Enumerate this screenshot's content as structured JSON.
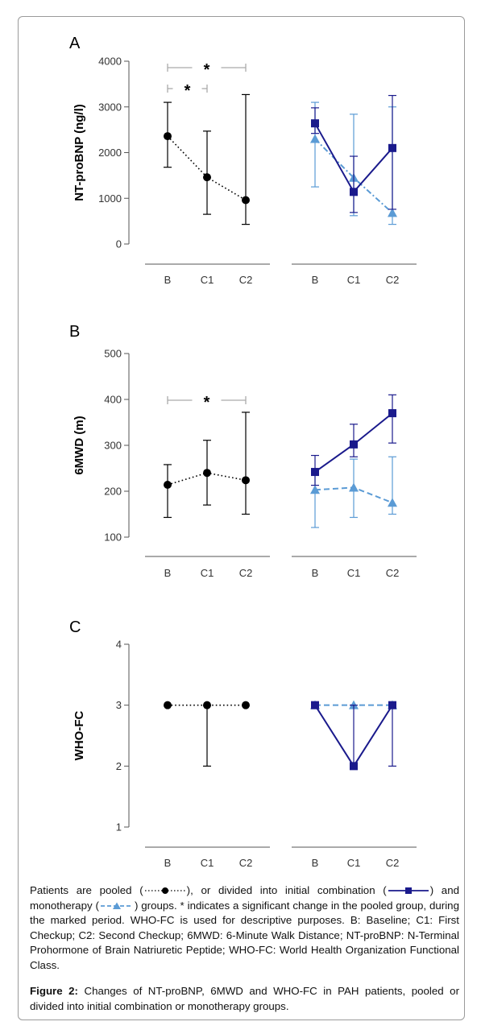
{
  "chart_data": [
    {
      "panel": "A",
      "type": "line",
      "ylabel": "NT-proBNP (ng/l)",
      "ylim": [
        0,
        4000
      ],
      "yticks": [
        0,
        1000,
        2000,
        3000,
        4000
      ],
      "categories": [
        "B",
        "C1",
        "C2"
      ],
      "significance": [
        {
          "from": "B",
          "to": "C2",
          "label": "*"
        },
        {
          "from": "B",
          "to": "C1",
          "label": "*"
        }
      ],
      "series": [
        {
          "group": "pooled",
          "style": "dotted",
          "marker": "circle",
          "color": "#000000",
          "values": [
            2360,
            1460,
            960
          ],
          "lower": [
            1680,
            650,
            430
          ],
          "upper": [
            3100,
            2470,
            3270
          ]
        },
        {
          "group": "combination",
          "style": "solid",
          "marker": "square",
          "color": "#1a1a8c",
          "values": [
            2640,
            1140,
            2100
          ],
          "lower": [
            2420,
            690,
            760
          ],
          "upper": [
            2980,
            1920,
            3250
          ]
        },
        {
          "group": "monotherapy",
          "style": "dashdot",
          "marker": "triangle",
          "color": "#5b9bd5",
          "values": [
            2300,
            1450,
            680
          ],
          "lower": [
            1250,
            620,
            430
          ],
          "upper": [
            3100,
            2840,
            3000
          ]
        }
      ]
    },
    {
      "panel": "B",
      "type": "line",
      "ylabel": "6MWD (m)",
      "ylim": [
        100,
        500
      ],
      "yticks": [
        100,
        200,
        300,
        400,
        500
      ],
      "categories": [
        "B",
        "C1",
        "C2"
      ],
      "significance": [
        {
          "from": "B",
          "to": "C2",
          "label": "*"
        }
      ],
      "series": [
        {
          "group": "pooled",
          "style": "dotted",
          "marker": "circle",
          "color": "#000000",
          "values": [
            214,
            240,
            224
          ],
          "lower": [
            143,
            170,
            150
          ],
          "upper": [
            258,
            311,
            372
          ]
        },
        {
          "group": "combination",
          "style": "solid",
          "marker": "square",
          "color": "#1a1a8c",
          "values": [
            242,
            302,
            370
          ],
          "lower": [
            213,
            275,
            305
          ],
          "upper": [
            278,
            346,
            410
          ]
        },
        {
          "group": "monotherapy",
          "style": "dashed",
          "marker": "triangle",
          "color": "#5b9bd5",
          "values": [
            203,
            208,
            175
          ],
          "lower": [
            121,
            143,
            150
          ],
          "upper": [
            242,
            270,
            275
          ]
        }
      ]
    },
    {
      "panel": "C",
      "type": "line",
      "ylabel": "WHO-FC",
      "ylim": [
        1,
        4
      ],
      "yticks": [
        1,
        2,
        3,
        4
      ],
      "categories": [
        "B",
        "C1",
        "C2"
      ],
      "significance": [],
      "series": [
        {
          "group": "pooled",
          "style": "dotted",
          "marker": "circle",
          "color": "#000000",
          "values": [
            3,
            3,
            3
          ],
          "lower": [
            3,
            2,
            3
          ],
          "upper": [
            3,
            3,
            3
          ]
        },
        {
          "group": "combination",
          "style": "solid",
          "marker": "square",
          "color": "#1a1a8c",
          "values": [
            3,
            2,
            3
          ],
          "lower": [
            3,
            2,
            2
          ],
          "upper": [
            3,
            3,
            3
          ]
        },
        {
          "group": "monotherapy",
          "style": "dashed",
          "marker": "triangle",
          "color": "#5b9bd5",
          "values": [
            3,
            3,
            3
          ],
          "lower": [
            3,
            3,
            3
          ],
          "upper": [
            3,
            3,
            3
          ]
        }
      ]
    }
  ],
  "caption": {
    "p1_a": "Patients are pooled (",
    "p1_b": "), or divided into initial combination (",
    "p1_c": ") and monotherapy (",
    "p1_d": ") groups. * indicates a significant change in the pooled group, during the marked period. WHO-FC is used for descriptive purposes. B: Baseline; C1: First Checkup; C2: Second Checkup; 6MWD: 6-Minute Walk Distance; NT-proBNP: N-Terminal Prohormone of Brain Natriuretic Peptide; WHO-FC: World Health Organization Functional Class.",
    "figure_label": "Figure 2:",
    "figure_title": " Changes of NT-proBNP, 6MWD and WHO-FC in PAH patients, pooled or divided into initial combination or monotherapy groups."
  }
}
